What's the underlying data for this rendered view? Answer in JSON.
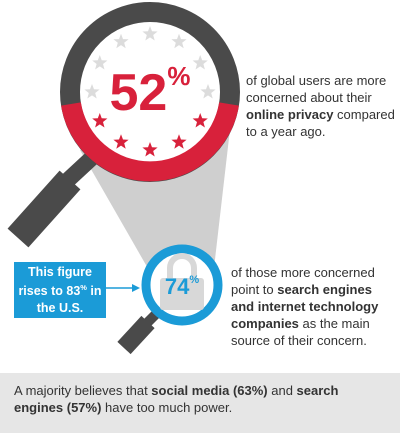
{
  "stat_primary": {
    "number": "52",
    "unit": "%"
  },
  "text_primary": {
    "before": "of global users are more concerned about their ",
    "bold": "online privacy",
    "after": " compared to a year ago."
  },
  "callout": {
    "before": "This figure rises to ",
    "number": "83",
    "unit": "%",
    "after": " in the U.S."
  },
  "stat_secondary": {
    "number": "74",
    "unit": "%"
  },
  "text_secondary": {
    "before": "of those more concerned point to ",
    "bold": "search engines and internet technology companies",
    "after": " as the main source of their concern."
  },
  "footer": {
    "part1": "A majority believes that ",
    "bold1": "social media (63%)",
    "part2": " and ",
    "bold2": "search engines (57%)",
    "part3": " have too much power."
  }
}
